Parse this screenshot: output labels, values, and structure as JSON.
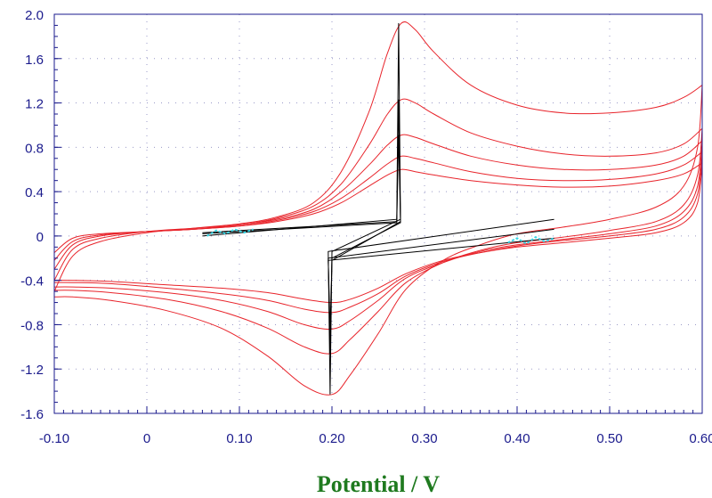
{
  "chart_data": {
    "type": "line",
    "title": "",
    "xlabel": "Potential / V",
    "ylabel": "",
    "xlim": [
      -0.1,
      0.6
    ],
    "ylim": [
      -1.6,
      2.0
    ],
    "grid": "dotted",
    "x_ticks": [
      "-0.10",
      "0",
      "0.10",
      "0.20",
      "0.30",
      "0.40",
      "0.50",
      "0.60"
    ],
    "x_tick_values": [
      -0.1,
      0.0,
      0.1,
      0.2,
      0.3,
      0.4,
      0.5,
      0.6
    ],
    "y_ticks": [
      "2.0",
      "1.6",
      "1.2",
      "0.8",
      "0.4",
      "0",
      "-0.4",
      "-0.8",
      "-1.2",
      "-1.6"
    ],
    "y_tick_values": [
      2.0,
      1.6,
      1.2,
      0.8,
      0.4,
      0.0,
      -0.4,
      -0.8,
      -1.2,
      -1.6
    ],
    "colors": {
      "cv": "#e8242b",
      "baseline": "#000000",
      "highlight": "#38d6e6",
      "axis": "#1a1a8c",
      "xlabel": "#1f7a1f"
    },
    "series": [
      {
        "kind": "cv",
        "forward": [
          [
            -0.1,
            -0.15
          ],
          [
            -0.08,
            -0.02
          ],
          [
            -0.05,
            0.02
          ],
          [
            0.0,
            0.04
          ],
          [
            0.05,
            0.06
          ],
          [
            0.1,
            0.09
          ],
          [
            0.14,
            0.13
          ],
          [
            0.18,
            0.2
          ],
          [
            0.21,
            0.3
          ],
          [
            0.24,
            0.45
          ],
          [
            0.26,
            0.55
          ],
          [
            0.275,
            0.6
          ],
          [
            0.29,
            0.58
          ],
          [
            0.31,
            0.55
          ],
          [
            0.35,
            0.5
          ],
          [
            0.4,
            0.46
          ],
          [
            0.45,
            0.44
          ],
          [
            0.5,
            0.45
          ],
          [
            0.55,
            0.5
          ],
          [
            0.58,
            0.56
          ],
          [
            0.6,
            0.66
          ]
        ],
        "reverse": [
          [
            0.6,
            0.66
          ],
          [
            0.595,
            0.3
          ],
          [
            0.58,
            0.12
          ],
          [
            0.55,
            0.03
          ],
          [
            0.5,
            -0.02
          ],
          [
            0.45,
            -0.06
          ],
          [
            0.4,
            -0.1
          ],
          [
            0.36,
            -0.15
          ],
          [
            0.32,
            -0.22
          ],
          [
            0.28,
            -0.34
          ],
          [
            0.25,
            -0.47
          ],
          [
            0.22,
            -0.57
          ],
          [
            0.2,
            -0.6
          ],
          [
            0.17,
            -0.57
          ],
          [
            0.13,
            -0.51
          ],
          [
            0.08,
            -0.47
          ],
          [
            0.02,
            -0.44
          ],
          [
            -0.04,
            -0.41
          ],
          [
            -0.08,
            -0.4
          ],
          [
            -0.1,
            -0.4
          ]
        ]
      },
      {
        "kind": "cv",
        "forward": [
          [
            -0.1,
            -0.22
          ],
          [
            -0.08,
            -0.05
          ],
          [
            -0.05,
            0.01
          ],
          [
            0.0,
            0.04
          ],
          [
            0.05,
            0.06
          ],
          [
            0.1,
            0.09
          ],
          [
            0.14,
            0.14
          ],
          [
            0.18,
            0.22
          ],
          [
            0.21,
            0.34
          ],
          [
            0.24,
            0.52
          ],
          [
            0.26,
            0.65
          ],
          [
            0.275,
            0.72
          ],
          [
            0.29,
            0.7
          ],
          [
            0.31,
            0.66
          ],
          [
            0.35,
            0.58
          ],
          [
            0.4,
            0.52
          ],
          [
            0.45,
            0.5
          ],
          [
            0.5,
            0.51
          ],
          [
            0.55,
            0.56
          ],
          [
            0.58,
            0.64
          ],
          [
            0.6,
            0.76
          ]
        ],
        "reverse": [
          [
            0.6,
            0.76
          ],
          [
            0.595,
            0.38
          ],
          [
            0.58,
            0.17
          ],
          [
            0.55,
            0.06
          ],
          [
            0.5,
            0.0
          ],
          [
            0.45,
            -0.04
          ],
          [
            0.4,
            -0.09
          ],
          [
            0.36,
            -0.15
          ],
          [
            0.32,
            -0.23
          ],
          [
            0.28,
            -0.36
          ],
          [
            0.25,
            -0.52
          ],
          [
            0.22,
            -0.64
          ],
          [
            0.2,
            -0.69
          ],
          [
            0.17,
            -0.66
          ],
          [
            0.13,
            -0.58
          ],
          [
            0.08,
            -0.52
          ],
          [
            0.02,
            -0.47
          ],
          [
            -0.04,
            -0.43
          ],
          [
            -0.08,
            -0.42
          ],
          [
            -0.1,
            -0.42
          ]
        ]
      },
      {
        "kind": "cv",
        "forward": [
          [
            -0.1,
            -0.3
          ],
          [
            -0.08,
            -0.08
          ],
          [
            -0.05,
            0.0
          ],
          [
            0.0,
            0.04
          ],
          [
            0.05,
            0.06
          ],
          [
            0.1,
            0.1
          ],
          [
            0.14,
            0.15
          ],
          [
            0.18,
            0.24
          ],
          [
            0.21,
            0.4
          ],
          [
            0.24,
            0.64
          ],
          [
            0.26,
            0.82
          ],
          [
            0.275,
            0.91
          ],
          [
            0.29,
            0.89
          ],
          [
            0.31,
            0.83
          ],
          [
            0.35,
            0.72
          ],
          [
            0.4,
            0.64
          ],
          [
            0.45,
            0.6
          ],
          [
            0.5,
            0.6
          ],
          [
            0.55,
            0.64
          ],
          [
            0.58,
            0.72
          ],
          [
            0.6,
            0.86
          ]
        ],
        "reverse": [
          [
            0.6,
            0.86
          ],
          [
            0.595,
            0.45
          ],
          [
            0.58,
            0.22
          ],
          [
            0.55,
            0.09
          ],
          [
            0.5,
            0.02
          ],
          [
            0.45,
            -0.03
          ],
          [
            0.4,
            -0.08
          ],
          [
            0.36,
            -0.14
          ],
          [
            0.32,
            -0.24
          ],
          [
            0.28,
            -0.38
          ],
          [
            0.25,
            -0.58
          ],
          [
            0.22,
            -0.76
          ],
          [
            0.2,
            -0.84
          ],
          [
            0.17,
            -0.8
          ],
          [
            0.13,
            -0.68
          ],
          [
            0.08,
            -0.58
          ],
          [
            0.02,
            -0.51
          ],
          [
            -0.04,
            -0.47
          ],
          [
            -0.08,
            -0.46
          ],
          [
            -0.1,
            -0.46
          ]
        ]
      },
      {
        "kind": "cv",
        "forward": [
          [
            -0.1,
            -0.4
          ],
          [
            -0.08,
            -0.12
          ],
          [
            -0.05,
            -0.02
          ],
          [
            0.0,
            0.04
          ],
          [
            0.05,
            0.07
          ],
          [
            0.1,
            0.1
          ],
          [
            0.14,
            0.16
          ],
          [
            0.18,
            0.27
          ],
          [
            0.21,
            0.47
          ],
          [
            0.24,
            0.82
          ],
          [
            0.26,
            1.1
          ],
          [
            0.275,
            1.23
          ],
          [
            0.29,
            1.2
          ],
          [
            0.31,
            1.1
          ],
          [
            0.35,
            0.93
          ],
          [
            0.4,
            0.81
          ],
          [
            0.45,
            0.74
          ],
          [
            0.5,
            0.72
          ],
          [
            0.55,
            0.75
          ],
          [
            0.58,
            0.83
          ],
          [
            0.6,
            0.97
          ]
        ],
        "reverse": [
          [
            0.6,
            0.97
          ],
          [
            0.595,
            0.55
          ],
          [
            0.58,
            0.28
          ],
          [
            0.55,
            0.13
          ],
          [
            0.5,
            0.05
          ],
          [
            0.45,
            -0.01
          ],
          [
            0.4,
            -0.06
          ],
          [
            0.36,
            -0.13
          ],
          [
            0.32,
            -0.24
          ],
          [
            0.28,
            -0.42
          ],
          [
            0.25,
            -0.68
          ],
          [
            0.22,
            -0.93
          ],
          [
            0.2,
            -1.06
          ],
          [
            0.17,
            -1.0
          ],
          [
            0.13,
            -0.83
          ],
          [
            0.08,
            -0.68
          ],
          [
            0.02,
            -0.57
          ],
          [
            -0.04,
            -0.51
          ],
          [
            -0.08,
            -0.49
          ],
          [
            -0.1,
            -0.49
          ]
        ]
      },
      {
        "kind": "cv",
        "forward": [
          [
            -0.1,
            -0.5
          ],
          [
            -0.08,
            -0.18
          ],
          [
            -0.05,
            -0.05
          ],
          [
            0.0,
            0.03
          ],
          [
            0.05,
            0.07
          ],
          [
            0.1,
            0.11
          ],
          [
            0.14,
            0.17
          ],
          [
            0.18,
            0.3
          ],
          [
            0.21,
            0.58
          ],
          [
            0.24,
            1.12
          ],
          [
            0.26,
            1.65
          ],
          [
            0.275,
            1.92
          ],
          [
            0.29,
            1.86
          ],
          [
            0.31,
            1.66
          ],
          [
            0.35,
            1.36
          ],
          [
            0.4,
            1.18
          ],
          [
            0.45,
            1.11
          ],
          [
            0.5,
            1.11
          ],
          [
            0.55,
            1.16
          ],
          [
            0.58,
            1.25
          ],
          [
            0.6,
            1.36
          ]
        ],
        "reverse": [
          [
            0.6,
            1.36
          ],
          [
            0.595,
            0.8
          ],
          [
            0.58,
            0.45
          ],
          [
            0.55,
            0.26
          ],
          [
            0.5,
            0.15
          ],
          [
            0.45,
            0.08
          ],
          [
            0.4,
            0.02
          ],
          [
            0.36,
            -0.08
          ],
          [
            0.32,
            -0.22
          ],
          [
            0.28,
            -0.48
          ],
          [
            0.25,
            -0.88
          ],
          [
            0.22,
            -1.25
          ],
          [
            0.2,
            -1.43
          ],
          [
            0.17,
            -1.35
          ],
          [
            0.13,
            -1.08
          ],
          [
            0.08,
            -0.83
          ],
          [
            0.02,
            -0.67
          ],
          [
            -0.04,
            -0.58
          ],
          [
            -0.08,
            -0.55
          ],
          [
            -0.1,
            -0.55
          ]
        ]
      },
      {
        "kind": "baseline",
        "path": [
          [
            0.06,
            0.0
          ],
          [
            0.27,
            0.15
          ],
          [
            0.272,
            1.92
          ],
          [
            0.274,
            0.15
          ],
          [
            0.2,
            -0.14
          ],
          [
            0.198,
            -1.43
          ],
          [
            0.196,
            -0.14
          ],
          [
            0.44,
            0.15
          ]
        ]
      },
      {
        "kind": "baseline",
        "path": [
          [
            0.06,
            0.02
          ],
          [
            0.27,
            0.12
          ],
          [
            0.272,
            1.23
          ],
          [
            0.274,
            0.12
          ],
          [
            0.2,
            -0.2
          ],
          [
            0.198,
            -1.06
          ],
          [
            0.196,
            -0.2
          ],
          [
            0.44,
            0.06
          ]
        ]
      },
      {
        "kind": "baseline",
        "path": [
          [
            0.06,
            0.03
          ],
          [
            0.27,
            0.13
          ],
          [
            0.272,
            0.91
          ],
          [
            0.274,
            0.13
          ],
          [
            0.2,
            -0.22
          ],
          [
            0.198,
            -0.84
          ],
          [
            0.196,
            -0.22
          ],
          [
            0.44,
            -0.02
          ]
        ]
      },
      {
        "kind": "highlight",
        "path": [
          [
            0.065,
            0.0
          ],
          [
            0.075,
            0.05
          ],
          [
            0.085,
            0.02
          ],
          [
            0.095,
            0.06
          ],
          [
            0.105,
            0.03
          ],
          [
            0.115,
            0.06
          ]
        ]
      },
      {
        "kind": "highlight",
        "path": [
          [
            0.39,
            -0.06
          ],
          [
            0.4,
            -0.02
          ],
          [
            0.41,
            -0.07
          ],
          [
            0.42,
            -0.01
          ],
          [
            0.43,
            -0.05
          ],
          [
            0.44,
            -0.02
          ]
        ]
      }
    ]
  }
}
